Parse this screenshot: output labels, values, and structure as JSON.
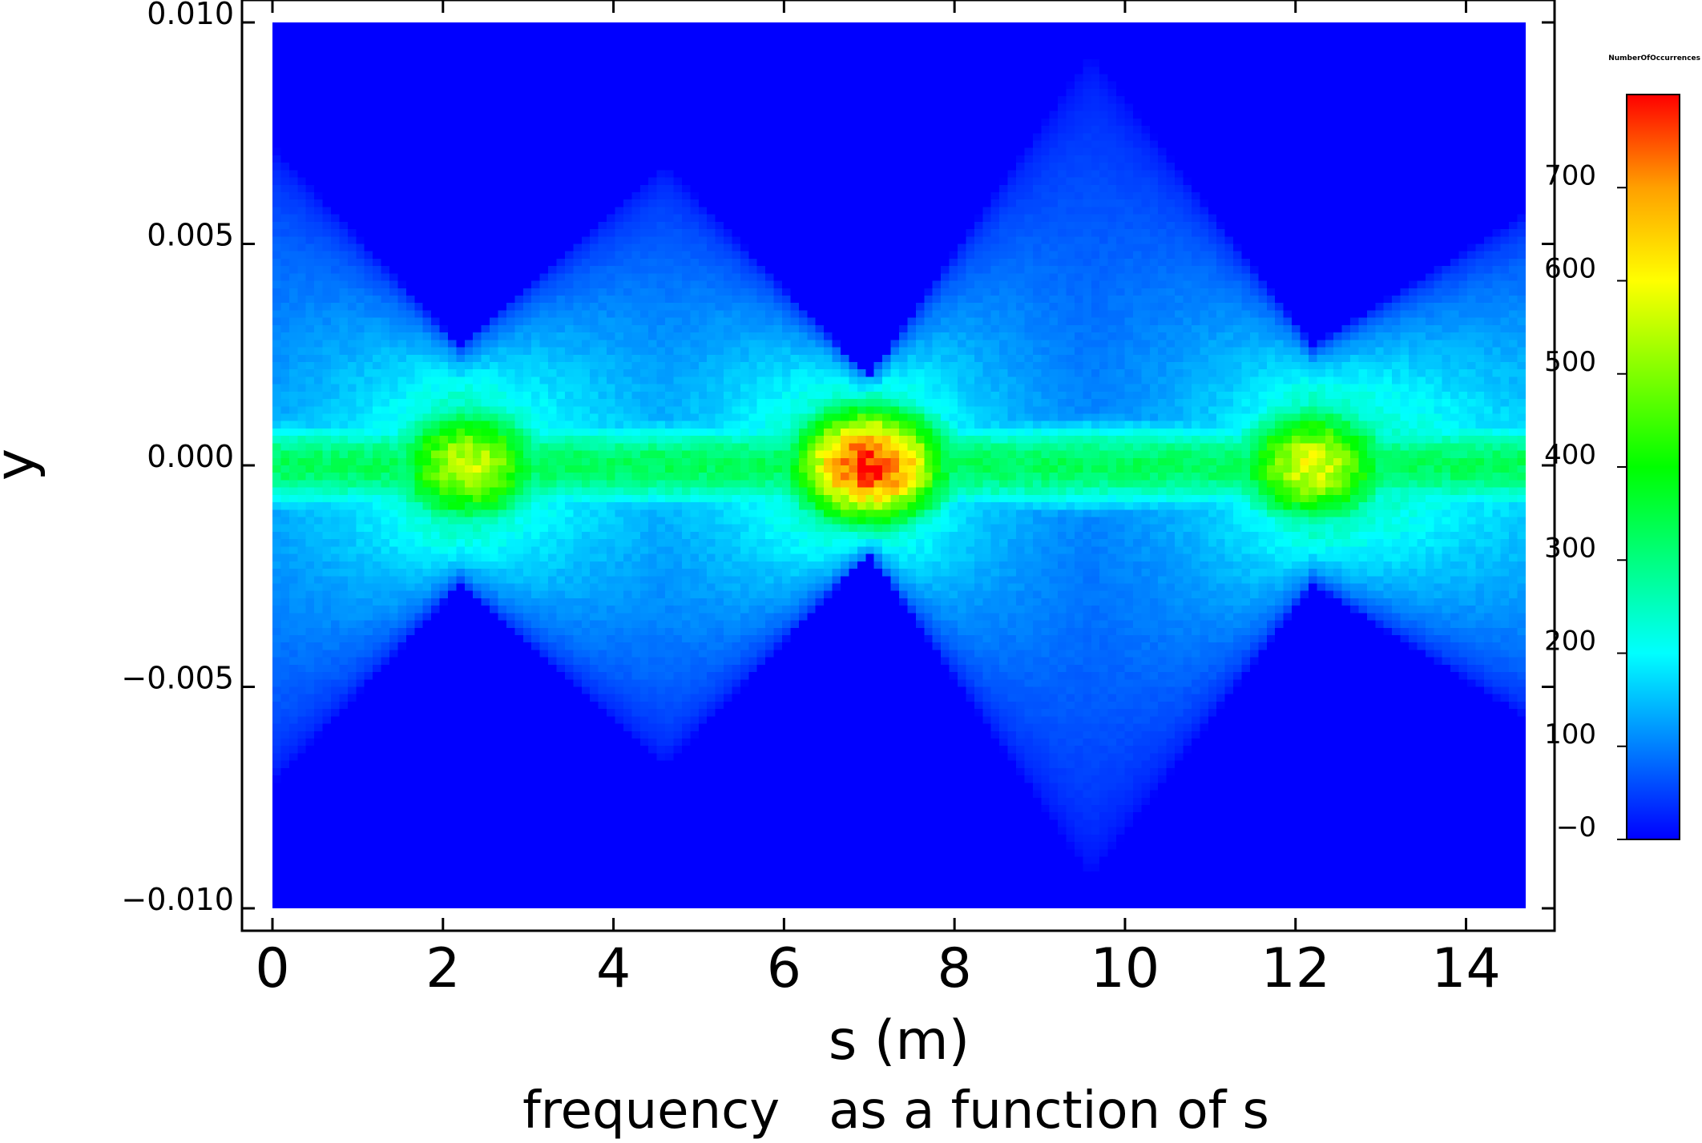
{
  "chart_data": {
    "type": "heatmap",
    "title": "frequency   as a function of s",
    "xlabel": "s (m)",
    "ylabel": "y",
    "xlim": [
      0,
      14.7
    ],
    "ylim": [
      -0.01,
      0.01
    ],
    "x_ticks": [
      0,
      2,
      4,
      6,
      8,
      10,
      12,
      14
    ],
    "x_tick_labels": [
      "0",
      "2",
      "4",
      "6",
      "8",
      "10",
      "12",
      "14"
    ],
    "y_ticks": [
      0.01,
      0.005,
      0.0,
      -0.005,
      -0.01
    ],
    "y_tick_labels": [
      "0.010",
      "0.005",
      "0.000",
      "−0.005",
      "−0.010"
    ],
    "colorbar": {
      "title": "NumberOfOccurrences",
      "range": [
        0,
        800
      ],
      "ticks": [
        700,
        600,
        500,
        400,
        300,
        200,
        100,
        0
      ],
      "tick_labels": [
        "700",
        "600",
        "500",
        "400",
        "300",
        "200",
        "100",
        "−0"
      ],
      "colormap": [
        "#0000ff",
        "#0080ff",
        "#00ffff",
        "#00ff80",
        "#00ff00",
        "#80ff00",
        "#ffff00",
        "#ffa000",
        "#ff0000"
      ]
    },
    "envelope": {
      "description_points_s": [
        0,
        2.2,
        4.6,
        7.0,
        9.6,
        12.2,
        14.7
      ],
      "half_width": [
        0.0072,
        0.0027,
        0.0068,
        0.002,
        0.0093,
        0.0027,
        0.0057
      ]
    },
    "core": {
      "centers_s": [
        2.3,
        7.0,
        12.2
      ],
      "peak_counts": [
        560,
        790,
        580
      ],
      "core_half_width_y": 0.0016
    }
  }
}
